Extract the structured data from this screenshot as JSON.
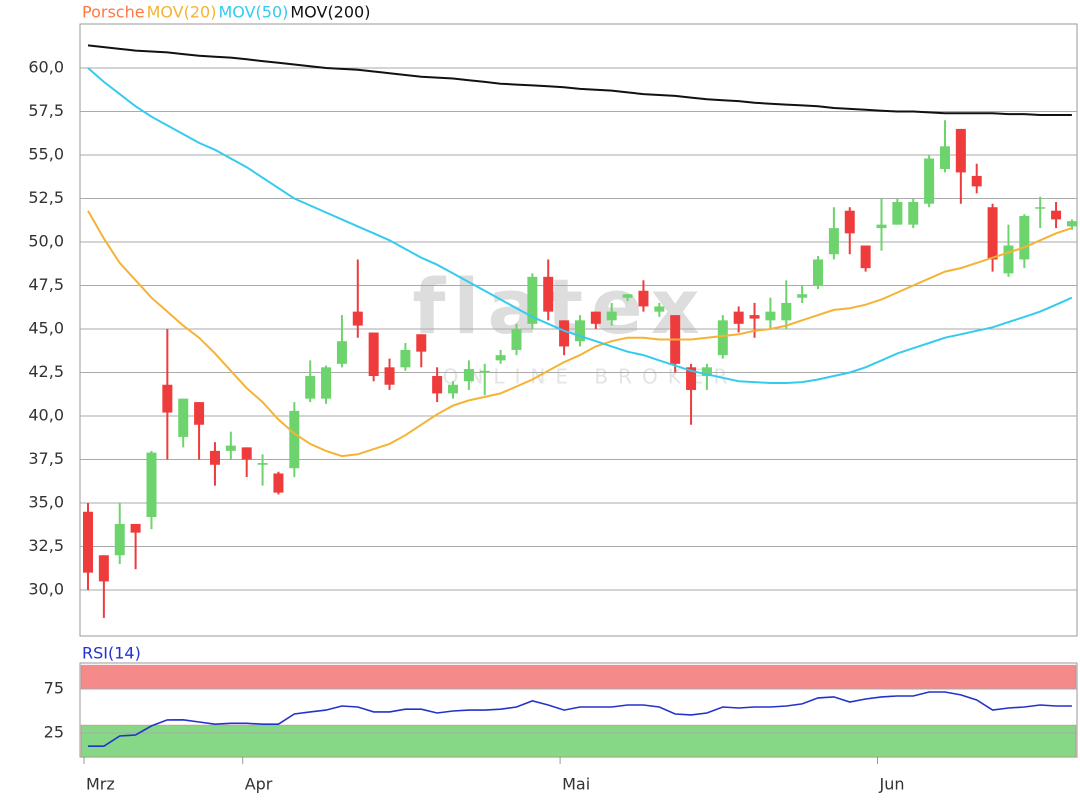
{
  "chart_data": [
    {
      "type": "candlestick",
      "watermark": "flatex",
      "watermark_sub": "ONLINE BROKER",
      "categories": [
        "Mrz",
        null,
        null,
        null,
        null,
        null,
        null,
        null,
        null,
        null,
        "Apr",
        null,
        null,
        null,
        null,
        null,
        null,
        null,
        null,
        null,
        null,
        null,
        null,
        null,
        null,
        null,
        null,
        null,
        null,
        null,
        "Mai",
        null,
        null,
        null,
        null,
        null,
        null,
        null,
        null,
        null,
        null,
        null,
        null,
        null,
        null,
        null,
        null,
        null,
        null,
        null,
        "Jun",
        null,
        null,
        null,
        null,
        null,
        null,
        null,
        null,
        null,
        null,
        null,
        null
      ],
      "ylim": [
        27.36,
        62.53
      ],
      "yticks": [
        {
          "value": 30,
          "label": "30,0"
        },
        {
          "value": 32.5,
          "label": "32,5"
        },
        {
          "value": 35,
          "label": "35,0"
        },
        {
          "value": 37.5,
          "label": "37,5"
        },
        {
          "value": 40,
          "label": "40,0"
        },
        {
          "value": 42.5,
          "label": "42,5"
        },
        {
          "value": 45,
          "label": "45,0"
        },
        {
          "value": 47.5,
          "label": "47,5"
        },
        {
          "value": 50,
          "label": "50,0"
        },
        {
          "value": 52.5,
          "label": "52,5"
        },
        {
          "value": 55,
          "label": "55,0"
        },
        {
          "value": 57.5,
          "label": "57,5"
        },
        {
          "value": 60,
          "label": "60,0"
        }
      ],
      "grid": true,
      "series": [
        {
          "name": "Porsche",
          "color": "#ff7744",
          "up_color": "#6dd46d",
          "down_color": "#ee3b3b",
          "open": [
            34.5,
            32.0,
            32.0,
            33.8,
            34.2,
            41.8,
            38.8,
            40.8,
            38.0,
            38.0,
            38.2,
            37.2,
            36.7,
            37.0,
            41.0,
            41.0,
            43.0,
            46.0,
            44.8,
            42.8,
            42.8,
            44.7,
            42.3,
            41.3,
            42.0,
            42.5,
            43.2,
            43.8,
            45.3,
            48.0,
            45.5,
            44.3,
            46.0,
            45.5,
            46.8,
            47.2,
            46.0,
            45.8,
            42.8,
            42.3,
            43.5,
            46.0,
            45.8,
            45.5,
            45.5,
            46.8,
            47.5,
            49.3,
            51.8,
            49.8,
            50.8,
            51.0,
            51.0,
            52.2,
            54.2,
            56.5,
            53.8,
            52.0,
            48.2,
            49.0,
            52.0,
            51.8,
            50.9
          ],
          "high": [
            35.0,
            32.0,
            35.0,
            33.8,
            38.0,
            45.0,
            41.0,
            40.8,
            38.5,
            39.1,
            38.2,
            37.8,
            36.8,
            40.8,
            43.2,
            42.9,
            45.8,
            49.0,
            44.8,
            43.3,
            44.2,
            44.7,
            42.8,
            42.0,
            43.2,
            43.0,
            43.8,
            45.3,
            48.2,
            49.0,
            45.5,
            45.8,
            46.0,
            46.5,
            47.0,
            47.8,
            46.5,
            45.8,
            43.0,
            43.0,
            45.8,
            46.3,
            46.5,
            46.8,
            47.8,
            47.5,
            49.2,
            52.0,
            52.0,
            49.8,
            52.5,
            52.5,
            52.5,
            55.0,
            57.0,
            56.5,
            54.5,
            52.2,
            51.0,
            51.6,
            52.6,
            52.3,
            51.3
          ],
          "low": [
            30.0,
            28.4,
            31.5,
            31.2,
            33.5,
            37.5,
            38.2,
            37.5,
            36.0,
            37.5,
            36.5,
            36.0,
            35.5,
            36.5,
            40.8,
            40.7,
            42.8,
            44.5,
            42.0,
            41.5,
            42.6,
            42.8,
            40.8,
            41.0,
            41.5,
            41.2,
            43.0,
            43.5,
            45.0,
            45.5,
            43.5,
            44.0,
            45.0,
            45.2,
            46.6,
            46.0,
            45.7,
            42.5,
            39.5,
            41.5,
            43.3,
            44.8,
            44.5,
            45.0,
            45.0,
            46.5,
            47.3,
            49.0,
            49.3,
            48.3,
            49.5,
            51.0,
            50.8,
            52.0,
            54.0,
            52.2,
            52.8,
            48.3,
            48.0,
            48.5,
            50.8,
            50.8,
            50.7
          ],
          "close": [
            31.0,
            30.5,
            33.8,
            33.3,
            37.9,
            40.2,
            41.0,
            39.5,
            37.2,
            38.3,
            37.5,
            37.3,
            35.6,
            40.3,
            42.3,
            42.8,
            44.3,
            45.2,
            42.3,
            41.8,
            43.8,
            43.7,
            41.3,
            41.8,
            42.7,
            42.6,
            43.5,
            45.0,
            48.0,
            46.0,
            44.0,
            45.5,
            45.3,
            46.0,
            47.0,
            46.3,
            46.3,
            43.0,
            41.5,
            42.8,
            45.5,
            45.3,
            45.6,
            46.0,
            46.5,
            47.0,
            49.0,
            50.8,
            50.5,
            48.5,
            51.0,
            52.3,
            52.3,
            54.8,
            55.5,
            54.0,
            53.2,
            49.0,
            49.8,
            51.5,
            52.0,
            51.3,
            51.2
          ]
        },
        {
          "name": "MOV(20)",
          "color": "#f5b335",
          "values": [
            51.8,
            50.2,
            48.8,
            47.8,
            46.8,
            46.0,
            45.2,
            44.5,
            43.6,
            42.6,
            41.6,
            40.8,
            39.8,
            39.0,
            38.4,
            38.0,
            37.7,
            37.8,
            38.1,
            38.4,
            38.9,
            39.5,
            40.1,
            40.6,
            40.9,
            41.1,
            41.3,
            41.7,
            42.1,
            42.6,
            43.1,
            43.5,
            44.0,
            44.3,
            44.5,
            44.5,
            44.4,
            44.4,
            44.4,
            44.5,
            44.6,
            44.7,
            44.9,
            45.0,
            45.2,
            45.5,
            45.8,
            46.1,
            46.2,
            46.4,
            46.7,
            47.1,
            47.5,
            47.9,
            48.3,
            48.5,
            48.8,
            49.1,
            49.4,
            49.7,
            50.1,
            50.5,
            50.8
          ]
        },
        {
          "name": "MOV(50)",
          "color": "#33ccee",
          "values": [
            60.0,
            59.2,
            58.5,
            57.8,
            57.2,
            56.7,
            56.2,
            55.7,
            55.3,
            54.8,
            54.3,
            53.7,
            53.1,
            52.5,
            52.1,
            51.7,
            51.3,
            50.9,
            50.5,
            50.1,
            49.6,
            49.1,
            48.7,
            48.2,
            47.7,
            47.2,
            46.7,
            46.2,
            45.7,
            45.3,
            44.9,
            44.6,
            44.3,
            44.0,
            43.7,
            43.5,
            43.2,
            42.9,
            42.6,
            42.4,
            42.2,
            42.0,
            41.95,
            41.9,
            41.9,
            41.95,
            42.1,
            42.3,
            42.5,
            42.8,
            43.2,
            43.6,
            43.9,
            44.2,
            44.5,
            44.7,
            44.9,
            45.1,
            45.4,
            45.7,
            46.0,
            46.4,
            46.8
          ]
        },
        {
          "name": "MOV(200)",
          "color": "#111111",
          "values": [
            61.3,
            61.2,
            61.1,
            61.0,
            60.95,
            60.9,
            60.8,
            60.7,
            60.65,
            60.6,
            60.5,
            60.4,
            60.3,
            60.2,
            60.1,
            60.0,
            59.95,
            59.9,
            59.8,
            59.7,
            59.6,
            59.5,
            59.45,
            59.4,
            59.3,
            59.2,
            59.1,
            59.05,
            59.0,
            58.95,
            58.9,
            58.8,
            58.75,
            58.7,
            58.6,
            58.5,
            58.45,
            58.4,
            58.3,
            58.2,
            58.15,
            58.1,
            58.0,
            57.95,
            57.9,
            57.85,
            57.8,
            57.7,
            57.65,
            57.6,
            57.55,
            57.5,
            57.5,
            57.45,
            57.4,
            57.4,
            57.4,
            57.4,
            57.35,
            57.35,
            57.3,
            57.3,
            57.3
          ]
        }
      ]
    },
    {
      "type": "line",
      "title": "RSI(14)",
      "ylim": [
        -2.3,
        104.5
      ],
      "yticks": [
        25,
        75
      ],
      "bands": [
        {
          "from": 75,
          "to": 102,
          "color": "#f48a8a"
        },
        {
          "from": -2.3,
          "to": 34,
          "color": "#86d886"
        }
      ],
      "series": [
        {
          "name": "RSI(14)",
          "color": "#2233cc",
          "values": [
            10,
            10,
            21.6,
            22.7,
            33,
            39.8,
            40,
            37.5,
            35,
            36,
            36,
            35,
            35,
            46.6,
            48.9,
            51,
            55.7,
            54.5,
            48.9,
            48.9,
            52,
            52,
            47.7,
            50,
            51,
            51,
            52,
            54.5,
            61.4,
            56.8,
            51,
            54.5,
            54.5,
            54.5,
            56.8,
            56.8,
            54.5,
            46.6,
            45.5,
            47.7,
            54.5,
            53.4,
            54.5,
            54.5,
            55.7,
            58,
            64.8,
            66,
            60.2,
            63.6,
            66,
            67,
            67,
            71.6,
            71.6,
            68.2,
            62.5,
            51,
            53.4,
            54.5,
            56.8,
            55.7,
            55.7
          ]
        }
      ]
    }
  ]
}
